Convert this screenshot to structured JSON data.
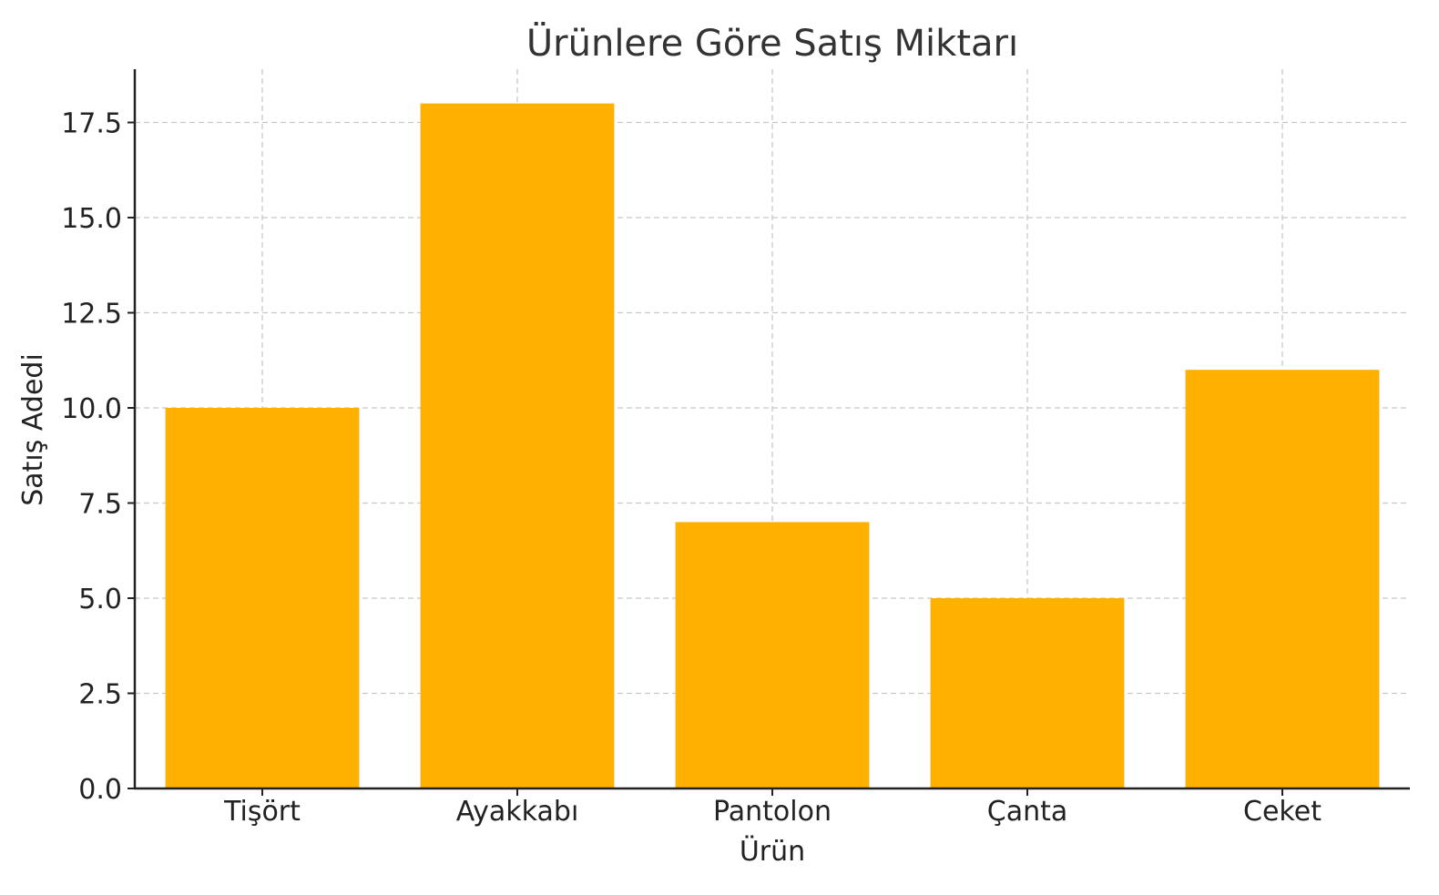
{
  "chart_data": {
    "type": "bar",
    "title": "Ürünlere Göre Satış Miktarı",
    "xlabel": "Ürün",
    "ylabel": "Satış Adedi",
    "categories": [
      "Tişört",
      "Ayakkabı",
      "Pantolon",
      "Çanta",
      "Ceket"
    ],
    "values": [
      10,
      18,
      7,
      5,
      11
    ],
    "ylim": [
      0,
      18.9
    ],
    "yticks": [
      0,
      2.5,
      5,
      7.5,
      10,
      12.5,
      15,
      17.5
    ],
    "ytick_labels": [
      "0.0",
      "2.5",
      "5.0",
      "7.5",
      "10.0",
      "12.5",
      "15.0",
      "17.5"
    ],
    "grid": true,
    "bar_color": "#FFB000"
  }
}
